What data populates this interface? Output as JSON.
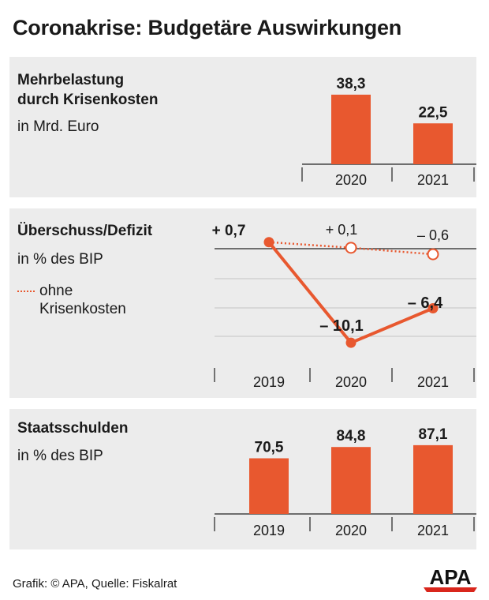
{
  "title": "Coronakrise: Budgetäre Auswirkungen",
  "footer": "Grafik: © APA, Quelle: Fiskalrat",
  "logo_text": "APA",
  "colors": {
    "accent": "#e8582f",
    "panel_bg": "#ececec"
  },
  "panels": {
    "krisenkosten": {
      "title_line1": "Mehrbelastung",
      "title_line2": "durch Krisenkosten",
      "unit": "in Mrd. Euro"
    },
    "defizit": {
      "title": "Überschuss/Defizit",
      "unit": "in % des BIP",
      "legend_line1": "ohne",
      "legend_line2": "Krisenkosten"
    },
    "schulden": {
      "title": "Staatsschulden",
      "unit": "in % des BIP"
    }
  },
  "chart_data": [
    {
      "type": "bar",
      "categories": [
        "2020",
        "2021"
      ],
      "values": [
        38.3,
        22.5
      ],
      "value_labels": [
        "38,3",
        "22,5"
      ],
      "title": "Mehrbelastung durch Krisenkosten",
      "ylabel": "in Mrd. Euro"
    },
    {
      "type": "line",
      "categories": [
        "2019",
        "2020",
        "2021"
      ],
      "ylim": [
        -13,
        1
      ],
      "grid": true,
      "series": [
        {
          "name": "",
          "values": [
            0.7,
            -10.1,
            -6.4
          ],
          "labels": [
            "+ 0,7",
            "– 10,1",
            "– 6,4"
          ],
          "style": "solid"
        },
        {
          "name": "ohne Krisenkosten",
          "values": [
            0.7,
            0.1,
            -0.6
          ],
          "labels": [
            "",
            "+ 0,1",
            "– 0,6"
          ],
          "style": "dotted"
        }
      ],
      "title": "Überschuss/Defizit",
      "ylabel": "in % des BIP"
    },
    {
      "type": "bar",
      "categories": [
        "2019",
        "2020",
        "2021"
      ],
      "values": [
        70.5,
        84.8,
        87.1
      ],
      "value_labels": [
        "70,5",
        "84,8",
        "87,1"
      ],
      "title": "Staatsschulden",
      "ylabel": "in % des BIP"
    }
  ]
}
